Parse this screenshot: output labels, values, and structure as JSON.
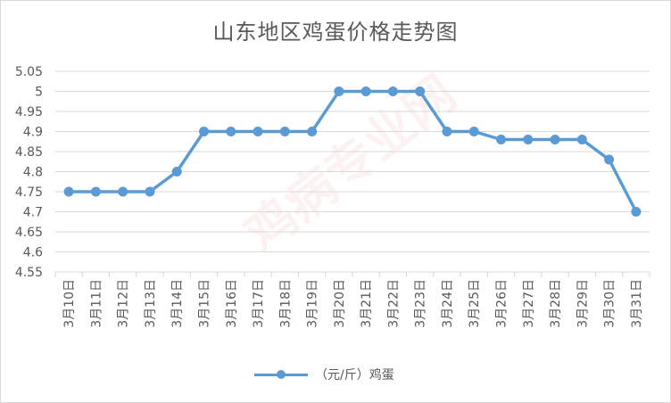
{
  "chart_data": {
    "type": "line",
    "title": "山东地区鸡蛋价格走势图",
    "xlabel": "",
    "ylabel": "",
    "categories": [
      "3月10日",
      "3月11日",
      "3月12日",
      "3月13日",
      "3月14日",
      "3月15日",
      "3月16日",
      "3月17日",
      "3月18日",
      "3月19日",
      "3月20日",
      "3月21日",
      "3月22日",
      "3月23日",
      "3月24日",
      "3月25日",
      "3月26日",
      "3月27日",
      "3月28日",
      "3月29日",
      "3月30日",
      "3月31日"
    ],
    "series": [
      {
        "name": "（元/斤）鸡蛋",
        "values": [
          4.75,
          4.75,
          4.75,
          4.75,
          4.8,
          4.9,
          4.9,
          4.9,
          4.9,
          4.9,
          5,
          5,
          5,
          5,
          4.9,
          4.9,
          4.88,
          4.88,
          4.88,
          4.88,
          4.83,
          4.7
        ],
        "color": "#5b9bd5"
      }
    ],
    "ylim": [
      4.55,
      5.05
    ],
    "yticks": [
      "4.55",
      "4.6",
      "4.65",
      "4.7",
      "4.75",
      "4.8",
      "4.85",
      "4.9",
      "4.95",
      "5",
      "5.05"
    ],
    "grid": true,
    "legend": "bottom"
  },
  "colors": {
    "line": "#5b9bd5",
    "grid": "#d9d9d9",
    "text": "#595959"
  },
  "watermark": "鸡病专业网"
}
